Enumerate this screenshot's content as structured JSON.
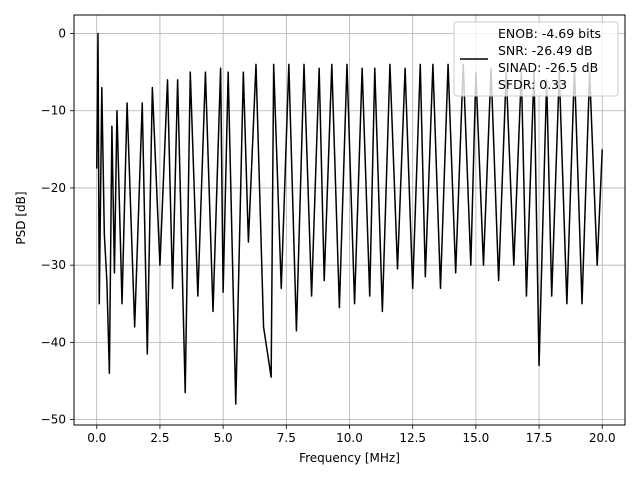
{
  "chart_data": {
    "type": "line",
    "xlabel": "Frequency [MHz]",
    "ylabel": "PSD [dB]",
    "xlim": [
      -0.9,
      20.9
    ],
    "ylim": [
      -50.7,
      2.4
    ],
    "xticks": [
      0.0,
      2.5,
      5.0,
      7.5,
      10.0,
      12.5,
      15.0,
      17.5,
      20.0
    ],
    "xtick_labels": [
      "0.0",
      "2.5",
      "5.0",
      "7.5",
      "10.0",
      "12.5",
      "15.0",
      "17.5",
      "20.0"
    ],
    "yticks": [
      0,
      -10,
      -20,
      -30,
      -40,
      -50
    ],
    "ytick_labels": [
      "0",
      "−10",
      "−20",
      "−30",
      "−40",
      "−50"
    ],
    "grid": true,
    "legend_position": "top-right",
    "legend": {
      "lines": [
        "ENOB: -4.69 bits",
        "SNR: -26.49 dB",
        "SINAD: -26.5 dB",
        "SFDR: 0.33"
      ]
    },
    "line_color": "#000000",
    "series": [
      {
        "x": [
          0.0,
          0.05,
          0.1,
          0.2,
          0.3,
          0.4,
          0.5,
          0.6,
          0.7,
          0.8,
          1.0,
          1.2,
          1.5,
          1.8,
          2.0,
          2.2,
          2.5,
          2.8,
          3.0,
          3.2,
          3.5,
          3.7,
          4.0,
          4.3,
          4.6,
          4.9,
          5.0,
          5.2,
          5.5,
          5.8,
          6.0,
          6.3,
          6.6,
          6.9,
          7.0,
          7.3,
          7.6,
          7.9,
          8.2,
          8.5,
          8.8,
          9.0,
          9.3,
          9.6,
          9.9,
          10.2,
          10.5,
          10.8,
          11.0,
          11.3,
          11.6,
          11.9,
          12.2,
          12.5,
          12.8,
          13.0,
          13.3,
          13.6,
          13.9,
          14.2,
          14.5,
          14.8,
          15.0,
          15.3,
          15.6,
          15.9,
          16.2,
          16.5,
          16.8,
          17.0,
          17.3,
          17.5,
          17.8,
          18.0,
          18.3,
          18.6,
          18.9,
          19.2,
          19.5,
          19.8,
          20.0
        ],
        "y": [
          -17.5,
          0.0,
          -35.0,
          -7.0,
          -26.0,
          -32.0,
          -44.0,
          -12.0,
          -31.0,
          -10.0,
          -35.0,
          -9.0,
          -38.0,
          -9.0,
          -41.5,
          -7.0,
          -30.0,
          -6.0,
          -33.0,
          -6.0,
          -46.5,
          -5.0,
          -34.0,
          -5.0,
          -36.0,
          -4.5,
          -33.5,
          -5.0,
          -48.0,
          -5.0,
          -27.0,
          -4.0,
          -38.0,
          -44.5,
          -4.0,
          -33.0,
          -4.0,
          -38.5,
          -4.0,
          -34.0,
          -4.5,
          -32.0,
          -4.0,
          -35.5,
          -4.0,
          -35.0,
          -4.5,
          -34.0,
          -4.5,
          -36.0,
          -4.0,
          -30.5,
          -4.5,
          -33.0,
          -4.0,
          -31.5,
          -4.0,
          -33.0,
          -4.0,
          -31.0,
          -4.0,
          -30.0,
          -5.0,
          -30.0,
          -4.5,
          -32.0,
          -5.0,
          -30.0,
          -5.0,
          -34.0,
          -5.0,
          -43.0,
          -6.0,
          -34.0,
          -5.0,
          -35.0,
          -4.5,
          -35.0,
          -5.0,
          -30.0,
          -15.0
        ]
      }
    ]
  }
}
